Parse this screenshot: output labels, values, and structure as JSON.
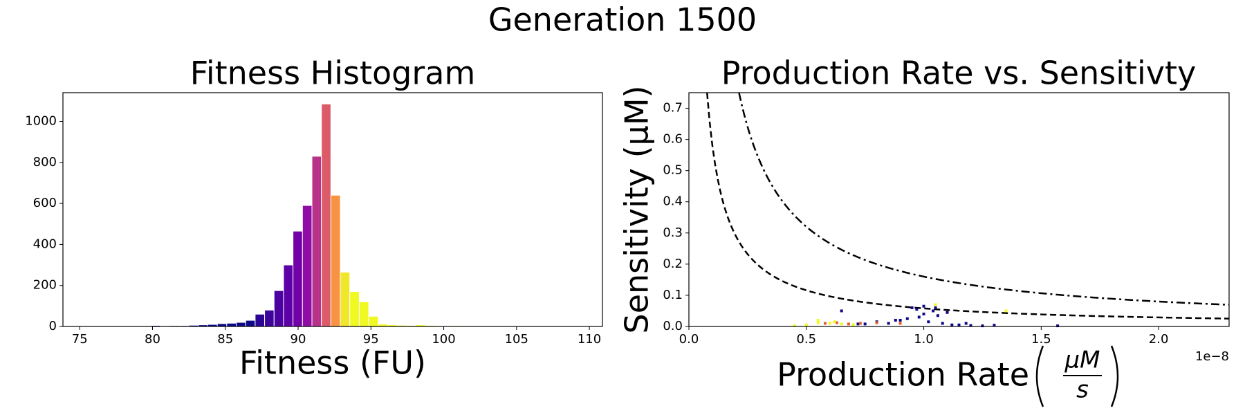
{
  "suptitle": "Generation 1500",
  "chart_data": [
    {
      "type": "histogram",
      "title": "Fitness Histogram",
      "xlabel": "Fitness (FU)",
      "bins": [
        76,
        76.65,
        77.3,
        77.95,
        78.6,
        79.25,
        79.9,
        80.55,
        81.2,
        81.85,
        82.5,
        83.15,
        83.8,
        84.45,
        85.1,
        85.75,
        86.4,
        87.05,
        87.7,
        88.35,
        89,
        89.65,
        90.3,
        90.95,
        91.6,
        92.25,
        92.9,
        93.55,
        94.2,
        94.85,
        95.5,
        96.15,
        96.8,
        97.45,
        98.1,
        98.75,
        99.4,
        100.05,
        100.7,
        101.35,
        102,
        102.65,
        103.3,
        103.95,
        104.6,
        105.25,
        105.9,
        106.55,
        107.2,
        107.85,
        108.5
      ],
      "values": [
        2,
        1,
        1,
        2,
        3,
        3,
        5,
        3,
        4,
        4,
        6,
        8,
        10,
        14,
        16,
        20,
        30,
        60,
        80,
        175,
        300,
        465,
        590,
        830,
        1085,
        640,
        265,
        170,
        120,
        50,
        12,
        8,
        6,
        5,
        8,
        5,
        3,
        2,
        4,
        3,
        2,
        2,
        1,
        1,
        1,
        1,
        1,
        2,
        1,
        2
      ],
      "colors": [
        "#0d0887",
        "#0d0887",
        "#0d0887",
        "#0d0887",
        "#0d0887",
        "#0d0887",
        "#0d0887",
        "#0d0887",
        "#0d0887",
        "#0d0887",
        "#0d0887",
        "#0d0887",
        "#0d0887",
        "#0d0887",
        "#0d0887",
        "#0d0887",
        "#0d0887",
        "#2c0594",
        "#3c049b",
        "#4c02a1",
        "#5d01a6",
        "#7201a8",
        "#8f0da4",
        "#b83289",
        "#db5c68",
        "#f89441",
        "#f0e62a",
        "#f0f921",
        "#f0f921",
        "#f0f921",
        "#f0f921",
        "#f0f921",
        "#f0f921",
        "#f0f921",
        "#f0f921",
        "#f0f921",
        "#f0f921",
        "#f0f921",
        "#f0f921",
        "#f0f921",
        "#f0f921",
        "#f0f921",
        "#f0f921",
        "#f0f921",
        "#f0f921",
        "#f0f921",
        "#f0f921",
        "#f0f921",
        "#f0f921",
        "#f0f921"
      ],
      "xlim": [
        73.85,
        110.9
      ],
      "ylim": [
        0,
        1140
      ],
      "xticks": [
        75,
        80,
        85,
        90,
        95,
        100,
        105,
        110
      ],
      "yticks": [
        0,
        200,
        400,
        600,
        800,
        1000
      ]
    },
    {
      "type": "scatter",
      "title": "Production Rate vs. Sensitivty",
      "xlabel": "Production Rate",
      "xlabel_numerator": "μM",
      "xlabel_denominator": "s",
      "ylabel": "Sensitivity (μM)",
      "x_offset_label": "1e−8",
      "xlim": [
        0,
        2.3e-08
      ],
      "ylim": [
        0,
        0.75
      ],
      "xticks": [
        {
          "value": 0,
          "label": "0.0"
        },
        {
          "value": 5e-09,
          "label": "0.5"
        },
        {
          "value": 1e-08,
          "label": "1.0"
        },
        {
          "value": 1.5e-08,
          "label": "1.5"
        },
        {
          "value": 2e-08,
          "label": "2.0"
        }
      ],
      "yticks": [
        {
          "value": 0,
          "label": "0.0"
        },
        0.1,
        0.2,
        0.3,
        0.4,
        0.5,
        0.6,
        0.7
      ],
      "curves": [
        {
          "style": "dashed",
          "k": 5.8e-10
        },
        {
          "style": "dashdot",
          "k": 1.6e-09
        }
      ],
      "series": [
        {
          "color": "#0d0887",
          "x": [
            9.5e-09,
            1e-08,
            1.05e-08,
            9e-09,
            9.8e-09,
            1.02e-08,
            1.08e-08,
            1.12e-08,
            8.5e-09,
            8e-09,
            7.5e-09,
            1.15e-08,
            1.2e-08,
            1.25e-08,
            1.3e-08,
            1.57e-08,
            9.7e-09,
            1.04e-08,
            1.1e-08,
            9.3e-09,
            8.8e-09,
            1e-08,
            1.06e-08,
            7.2e-09,
            1.18e-08,
            6.5e-09
          ],
          "values": [
            0.06,
            0.065,
            0.06,
            0.02,
            0.03,
            0.015,
            0.01,
            0.005,
            0.01,
            0.015,
            0.008,
            0.005,
            0.003,
            0.002,
            0.004,
            0.002,
            0.055,
            0.05,
            0.045,
            0.025,
            0.02,
            0.04,
            0.035,
            0.008,
            0.01,
            0.05
          ]
        },
        {
          "color": "#e55c30",
          "x": [
            5.8e-09,
            6.3e-09,
            6.8e-09,
            7.3e-09,
            8e-09,
            9e-09
          ],
          "values": [
            0.01,
            0.012,
            0.008,
            0.01,
            0.012,
            0.01
          ]
        },
        {
          "color": "#f0f921",
          "x": [
            4.5e-09,
            5e-09,
            5.5e-09,
            6e-09,
            6.5e-09,
            7e-09,
            5.5e-09,
            6.2e-09,
            1.05e-08,
            1.35e-08
          ],
          "values": [
            0.002,
            0.005,
            0.012,
            0.01,
            0.008,
            0.006,
            0.02,
            0.015,
            0.07,
            0.05
          ]
        }
      ]
    }
  ]
}
